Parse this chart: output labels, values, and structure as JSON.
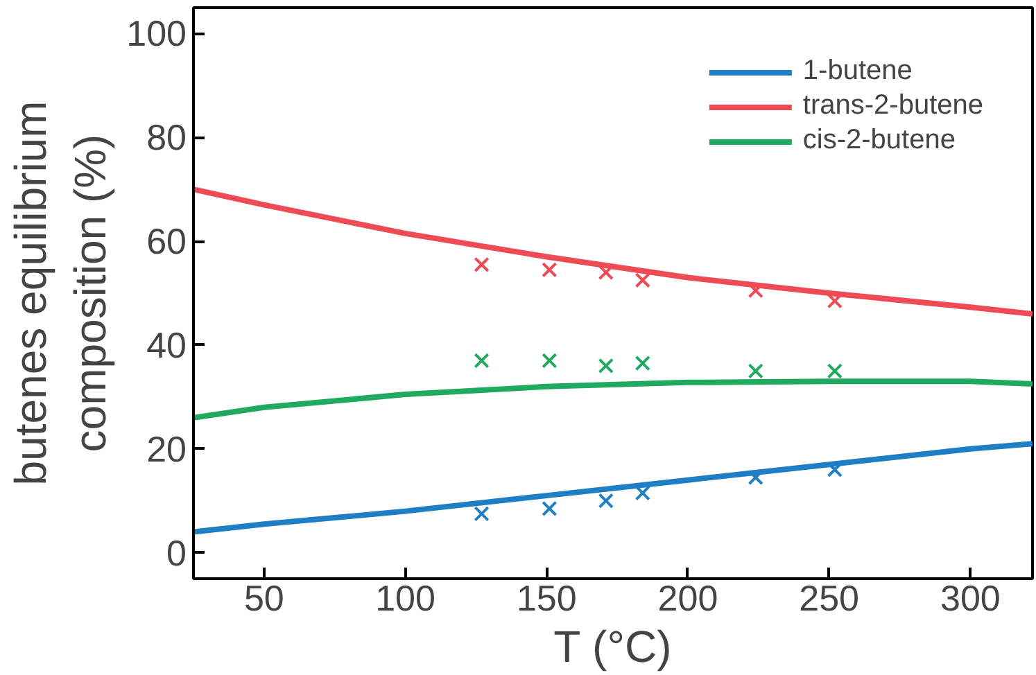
{
  "chart_data": {
    "type": "line",
    "xlabel": "T (°C)",
    "ylabel": "butenes equilibrium\ncomposition (%)",
    "xlim": [
      25,
      322
    ],
    "ylim": [
      -5,
      105
    ],
    "xticks": [
      50,
      100,
      150,
      200,
      250,
      300
    ],
    "yticks": [
      0,
      20,
      40,
      60,
      80,
      100
    ],
    "grid": false,
    "legend": "top right",
    "line_style": "solid",
    "series": [
      {
        "name": "1-butene",
        "color": "#1f7fc4",
        "x": [
          25,
          50,
          100,
          150,
          200,
          250,
          300,
          322
        ],
        "values": [
          4,
          5.5,
          8,
          11,
          14,
          17,
          20,
          21
        ]
      },
      {
        "name": "trans-2-butene",
        "color": "#ee4b55",
        "x": [
          25,
          50,
          100,
          150,
          200,
          250,
          300,
          322
        ],
        "values": [
          70,
          67,
          61.5,
          57,
          53,
          50,
          47.3,
          46
        ]
      },
      {
        "name": "cis-2-butene",
        "color": "#1faa5f",
        "x": [
          25,
          50,
          100,
          150,
          200,
          250,
          300,
          322
        ],
        "values": [
          26,
          28,
          30.5,
          32,
          32.8,
          33,
          33,
          32.5
        ]
      },
      {
        "type": "scatter",
        "marker": "cross",
        "color": "#1f7fc4",
        "x": [
          127,
          151,
          171,
          184,
          224,
          252
        ],
        "values": [
          7.5,
          8.5,
          10,
          11.5,
          14.5,
          16
        ]
      },
      {
        "type": "scatter",
        "marker": "cross",
        "color": "#ee4b55",
        "x": [
          127,
          151,
          171,
          184,
          224,
          252
        ],
        "values": [
          55.5,
          54.5,
          54,
          52.5,
          50.5,
          48.5
        ]
      },
      {
        "type": "scatter",
        "marker": "cross",
        "color": "#1faa5f",
        "x": [
          127,
          151,
          171,
          184,
          224,
          252
        ],
        "values": [
          37,
          37,
          36,
          36.5,
          35,
          35
        ]
      }
    ]
  }
}
